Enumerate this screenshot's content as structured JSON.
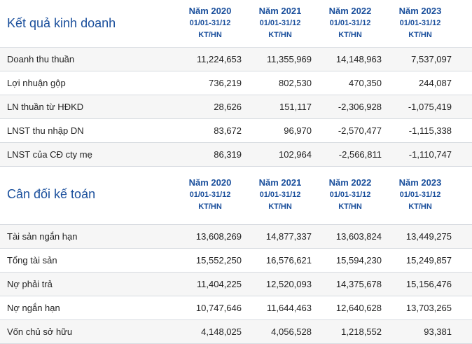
{
  "business_results": {
    "title": "Kết quả kinh doanh",
    "columns": [
      {
        "year": "Năm 2020",
        "period": "01/01-31/12",
        "status": "KT/HN"
      },
      {
        "year": "Năm 2021",
        "period": "01/01-31/12",
        "status": "KT/HN"
      },
      {
        "year": "Năm 2022",
        "period": "01/01-31/12",
        "status": "KT/HN"
      },
      {
        "year": "Năm 2023",
        "period": "01/01-31/12",
        "status": "KT/HN"
      }
    ],
    "rows": [
      {
        "label": "Doanh thu thuần",
        "values": [
          "11,224,653",
          "11,355,969",
          "14,148,963",
          "7,537,097"
        ]
      },
      {
        "label": "Lợi nhuận gộp",
        "values": [
          "736,219",
          "802,530",
          "470,350",
          "244,087"
        ]
      },
      {
        "label": "LN thuần từ HĐKD",
        "values": [
          "28,626",
          "151,117",
          "-2,306,928",
          "-1,075,419"
        ]
      },
      {
        "label": "LNST thu nhập DN",
        "values": [
          "83,672",
          "96,970",
          "-2,570,477",
          "-1,115,338"
        ]
      },
      {
        "label": "LNST của CĐ cty mẹ",
        "values": [
          "86,319",
          "102,964",
          "-2,566,811",
          "-1,110,747"
        ]
      }
    ]
  },
  "balance_sheet": {
    "title": "Cân đối kế toán",
    "columns": [
      {
        "year": "Năm 2020",
        "period": "01/01-31/12",
        "status": "KT/HN"
      },
      {
        "year": "Năm 2021",
        "period": "01/01-31/12",
        "status": "KT/HN"
      },
      {
        "year": "Năm 2022",
        "period": "01/01-31/12",
        "status": "KT/HN"
      },
      {
        "year": "Năm 2023",
        "period": "01/01-31/12",
        "status": "KT/HN"
      }
    ],
    "rows": [
      {
        "label": "Tài sản ngắn hạn",
        "values": [
          "13,608,269",
          "14,877,337",
          "13,603,824",
          "13,449,275"
        ]
      },
      {
        "label": "Tổng tài sản",
        "values": [
          "15,552,250",
          "16,576,621",
          "15,594,230",
          "15,249,857"
        ]
      },
      {
        "label": "Nợ phải trả",
        "values": [
          "11,404,225",
          "12,520,093",
          "14,375,678",
          "15,156,476"
        ]
      },
      {
        "label": "Nợ ngắn hạn",
        "values": [
          "10,747,646",
          "11,644,463",
          "12,640,628",
          "13,703,265"
        ]
      },
      {
        "label": "Vốn chủ sở hữu",
        "values": [
          "4,148,025",
          "4,056,528",
          "1,218,552",
          "93,381"
        ]
      }
    ]
  },
  "colors": {
    "accent": "#1a4f9c",
    "row_shade": "#f6f6f6",
    "divider": "#d7dbe0"
  }
}
